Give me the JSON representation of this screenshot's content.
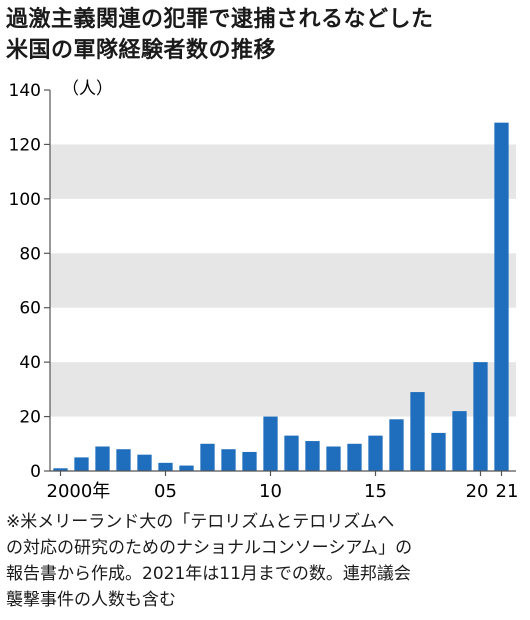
{
  "title_lines": [
    "過激主義関連の犯罪で逮捕されるなどした",
    "米国の軍隊経験者数の推移"
  ],
  "note_lines": [
    "※米メリーランド大の「テロリズムとテロリズムへ",
    "の対応の研究のためのナショナルコンソーシアム」の",
    "報告書から作成。2021年は11月までの数。連邦議会",
    "襲撃事件の人数も含む"
  ],
  "chart_data": {
    "type": "bar",
    "unit": "（人）",
    "x": [
      2000,
      2001,
      2002,
      2003,
      2004,
      2005,
      2006,
      2007,
      2008,
      2009,
      2010,
      2011,
      2012,
      2013,
      2014,
      2015,
      2016,
      2017,
      2018,
      2019,
      2020,
      2021
    ],
    "values": [
      1,
      5,
      9,
      8,
      6,
      3,
      2,
      10,
      8,
      7,
      20,
      13,
      11,
      9,
      10,
      13,
      19,
      29,
      14,
      22,
      40,
      128
    ],
    "x_tick_labels": [
      {
        "x": 2000,
        "label": "2000年"
      },
      {
        "x": 2005,
        "label": "05"
      },
      {
        "x": 2010,
        "label": "10"
      },
      {
        "x": 2015,
        "label": "15"
      },
      {
        "x": 2020,
        "label": "20"
      },
      {
        "x": 2021,
        "label": "21"
      }
    ],
    "y_ticks": [
      0,
      20,
      40,
      60,
      80,
      100,
      120,
      140
    ],
    "ylim": [
      0,
      140
    ],
    "bar_color": "#1f6ebd",
    "band_color": "#e6e6e6",
    "grid": true
  }
}
